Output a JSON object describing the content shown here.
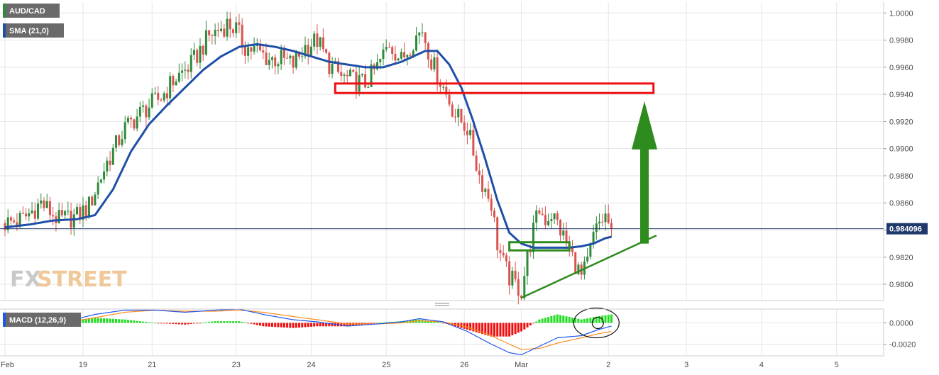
{
  "legend": {
    "symbol": "AUD/CAD",
    "sma": "SMA (21,0)",
    "macd": "MACD (12,26,9)"
  },
  "brand": {
    "part1": "FX",
    "part2": "STREET"
  },
  "colors": {
    "bull": "#2e8b3a",
    "bear": "#d9534f",
    "sma": "#1f4fa8",
    "macd_line": "#2255ee",
    "signal_line": "#ff8c1a",
    "hist_pos": "#22dd22",
    "hist_neg": "#ee1111",
    "zone_red": "#ee1111",
    "zone_green": "#2e8b1e",
    "legend_bg": "#6a6a6a",
    "legend_accent": "#1f4fa8",
    "price_tag": "#1f3a6a"
  },
  "chart_data": [
    {
      "type": "candlestick",
      "symbol": "AUD/CAD",
      "timeframe": "hourly",
      "x_tick_labels": [
        "Feb",
        "19",
        "21",
        "23",
        "24",
        "25",
        "26",
        "Mar",
        "2",
        "3",
        "4",
        "5"
      ],
      "x_tick_index": [
        0,
        26,
        49,
        77,
        102,
        127,
        153,
        172,
        201,
        227,
        252,
        277
      ],
      "ylim": [
        0.9788,
        1.0008
      ],
      "y_ticks": [
        0.98,
        0.982,
        0.984,
        0.986,
        0.988,
        0.99,
        0.992,
        0.994,
        0.996,
        0.998,
        1.0
      ],
      "y_tick_labels": [
        "0.9800",
        "0.9820",
        "0.9840",
        "0.9860",
        "0.9880",
        "0.9900",
        "0.9920",
        "0.9940",
        "0.9960",
        "0.9980",
        "1.0000"
      ],
      "total_slots": 300,
      "close_waypoints": [
        [
          0,
          0.9845
        ],
        [
          6,
          0.9848
        ],
        [
          12,
          0.986
        ],
        [
          18,
          0.9847
        ],
        [
          24,
          0.985
        ],
        [
          28,
          0.9858
        ],
        [
          34,
          0.989
        ],
        [
          40,
          0.9915
        ],
        [
          46,
          0.9928
        ],
        [
          52,
          0.9938
        ],
        [
          56,
          0.995
        ],
        [
          62,
          0.9962
        ],
        [
          68,
          0.9983
        ],
        [
          74,
          0.9992
        ],
        [
          77,
          0.9988
        ],
        [
          80,
          0.9975
        ],
        [
          84,
          0.9972
        ],
        [
          88,
          0.9966
        ],
        [
          92,
          0.9966
        ],
        [
          96,
          0.9962
        ],
        [
          100,
          0.9975
        ],
        [
          104,
          0.998
        ],
        [
          108,
          0.9962
        ],
        [
          112,
          0.9953
        ],
        [
          116,
          0.995
        ],
        [
          120,
          0.9948
        ],
        [
          124,
          0.996
        ],
        [
          128,
          0.9978
        ],
        [
          132,
          0.9965
        ],
        [
          136,
          0.998
        ],
        [
          139,
          0.9988
        ],
        [
          142,
          0.9965
        ],
        [
          146,
          0.9945
        ],
        [
          150,
          0.9925
        ],
        [
          154,
          0.9915
        ],
        [
          158,
          0.988
        ],
        [
          162,
          0.986
        ],
        [
          164,
          0.983
        ],
        [
          166,
          0.9815
        ],
        [
          168,
          0.9805
        ],
        [
          170,
          0.98
        ],
        [
          172,
          0.9795
        ],
        [
          174,
          0.982
        ],
        [
          176,
          0.984
        ],
        [
          178,
          0.9855
        ],
        [
          180,
          0.9848
        ],
        [
          182,
          0.9852
        ],
        [
          184,
          0.9845
        ],
        [
          186,
          0.9835
        ],
        [
          188,
          0.9825
        ],
        [
          190,
          0.9815
        ],
        [
          192,
          0.9805
        ],
        [
          194,
          0.9815
        ],
        [
          196,
          0.9835
        ],
        [
          198,
          0.9845
        ],
        [
          200,
          0.985
        ],
        [
          202,
          0.984
        ]
      ],
      "last_index": 202,
      "last_price": 0.984096,
      "last_price_label": "0.984096",
      "overlays": {
        "sma_21": [
          [
            0,
            0.9842
          ],
          [
            8,
            0.9844
          ],
          [
            16,
            0.9847
          ],
          [
            24,
            0.9848
          ],
          [
            30,
            0.9851
          ],
          [
            36,
            0.987
          ],
          [
            42,
            0.9898
          ],
          [
            48,
            0.9918
          ],
          [
            54,
            0.9932
          ],
          [
            60,
            0.9945
          ],
          [
            66,
            0.9958
          ],
          [
            72,
            0.9968
          ],
          [
            78,
            0.9975
          ],
          [
            84,
            0.9977
          ],
          [
            90,
            0.9975
          ],
          [
            96,
            0.9972
          ],
          [
            102,
            0.9968
          ],
          [
            108,
            0.9964
          ],
          [
            114,
            0.9962
          ],
          [
            120,
            0.996
          ],
          [
            126,
            0.996
          ],
          [
            132,
            0.9964
          ],
          [
            136,
            0.9968
          ],
          [
            140,
            0.9972
          ],
          [
            144,
            0.9972
          ],
          [
            148,
            0.9962
          ],
          [
            152,
            0.9945
          ],
          [
            156,
            0.992
          ],
          [
            160,
            0.9892
          ],
          [
            164,
            0.9862
          ],
          [
            168,
            0.9838
          ],
          [
            172,
            0.983
          ],
          [
            176,
            0.9827
          ],
          [
            180,
            0.9827
          ],
          [
            184,
            0.9827
          ],
          [
            188,
            0.9827
          ],
          [
            192,
            0.9828
          ],
          [
            196,
            0.983
          ],
          [
            200,
            0.9834
          ],
          [
            202,
            0.9835
          ]
        ],
        "resistance_zone": {
          "x": [
            110,
            216
          ],
          "y": [
            0.9941,
            0.9948
          ]
        },
        "support_zone": {
          "x": [
            168,
            188
          ],
          "y": [
            0.9825,
            0.9831
          ]
        },
        "trendline": {
          "x": [
            172,
            217
          ],
          "y": [
            0.979,
            0.9836
          ]
        },
        "up_arrow": {
          "x": 213,
          "y": [
            0.983,
            0.9935
          ]
        }
      }
    },
    {
      "type": "macd",
      "name": "MACD (12,26,9)",
      "ylim": [
        -0.0031,
        0.0013
      ],
      "y_ticks": [
        0.0,
        -0.002
      ],
      "y_tick_labels": [
        "0.0000",
        "-0.0020"
      ],
      "macd_waypoints": [
        [
          0,
          -0.0001
        ],
        [
          20,
          0.0001
        ],
        [
          30,
          0.0008
        ],
        [
          40,
          0.0012
        ],
        [
          50,
          0.0012
        ],
        [
          60,
          0.001
        ],
        [
          70,
          0.0012
        ],
        [
          78,
          0.0013
        ],
        [
          86,
          0.0008
        ],
        [
          96,
          0.0003
        ],
        [
          104,
          0.0001
        ],
        [
          114,
          -0.0003
        ],
        [
          124,
          -0.0001
        ],
        [
          132,
          0.0001
        ],
        [
          138,
          0.0004
        ],
        [
          146,
          0.0001
        ],
        [
          154,
          -0.0008
        ],
        [
          162,
          -0.002
        ],
        [
          168,
          -0.0028
        ],
        [
          172,
          -0.003
        ],
        [
          178,
          -0.0022
        ],
        [
          184,
          -0.0014
        ],
        [
          192,
          -0.0012
        ],
        [
          198,
          -0.0006
        ],
        [
          202,
          -0.0003
        ]
      ],
      "signal_waypoints": [
        [
          0,
          -0.0001
        ],
        [
          20,
          0.0
        ],
        [
          30,
          0.0005
        ],
        [
          40,
          0.001
        ],
        [
          50,
          0.0012
        ],
        [
          60,
          0.0011
        ],
        [
          70,
          0.0011
        ],
        [
          78,
          0.0012
        ],
        [
          86,
          0.001
        ],
        [
          96,
          0.0006
        ],
        [
          104,
          0.0003
        ],
        [
          114,
          -0.0001
        ],
        [
          124,
          -0.0001
        ],
        [
          132,
          0.0
        ],
        [
          138,
          0.0002
        ],
        [
          146,
          0.0001
        ],
        [
          154,
          -0.0004
        ],
        [
          162,
          -0.0012
        ],
        [
          168,
          -0.002
        ],
        [
          172,
          -0.0025
        ],
        [
          178,
          -0.0024
        ],
        [
          184,
          -0.0019
        ],
        [
          192,
          -0.0014
        ],
        [
          198,
          -0.001
        ],
        [
          202,
          -0.0008
        ]
      ],
      "highlight_ellipse": {
        "x": 197,
        "y": 0.0
      }
    }
  ]
}
